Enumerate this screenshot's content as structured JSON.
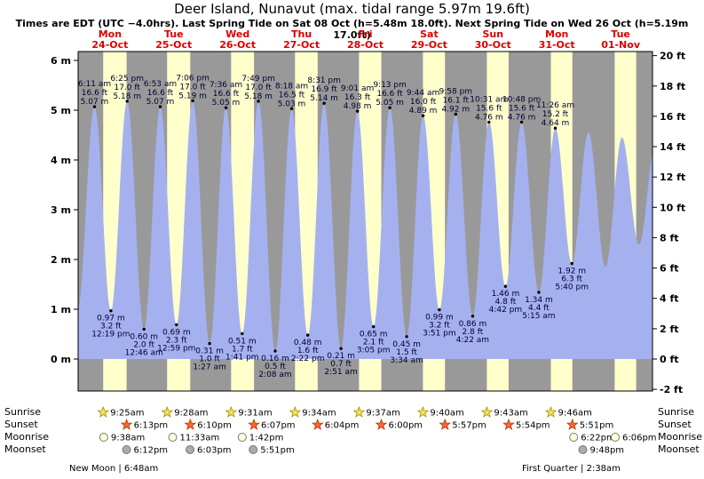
{
  "header": {
    "title": "Deer Island, Nunavut (max. tidal range 5.97m 19.6ft)",
    "subtitle": "Times are EDT (UTC −4.0hrs). Last Spring Tide on Sat 08 Oct (h=5.48m 18.0ft). Next Spring Tide on Wed 26 Oct (h=5.19m 17.0ft)"
  },
  "chart_data": {
    "type": "area",
    "title": "Deer Island, Nunavut tide curve",
    "days": [
      {
        "dow": "Mon",
        "date": "24-Oct"
      },
      {
        "dow": "Tue",
        "date": "25-Oct"
      },
      {
        "dow": "Wed",
        "date": "26-Oct"
      },
      {
        "dow": "Thu",
        "date": "27-Oct"
      },
      {
        "dow": "Fri",
        "date": "28-Oct"
      },
      {
        "dow": "Sat",
        "date": "29-Oct"
      },
      {
        "dow": "Sun",
        "date": "30-Oct"
      },
      {
        "dow": "Mon",
        "date": "31-Oct"
      },
      {
        "dow": "Tue",
        "date": "01-Nov"
      }
    ],
    "y_axis_left": {
      "unit": "m",
      "ticks": [
        6,
        5,
        4,
        3,
        2,
        1,
        0
      ]
    },
    "y_axis_right": {
      "unit": "ft",
      "ticks": [
        20,
        18,
        16,
        14,
        12,
        10,
        8,
        6,
        4,
        2,
        0,
        -2
      ]
    },
    "extremes": [
      {
        "kind": "high",
        "time": "6:11 am",
        "ft": "16.6 ft",
        "m": "5.07 m",
        "t": 6.18,
        "height_m": 5.07
      },
      {
        "kind": "low",
        "m": "0.97 m",
        "ft": "3.2 ft",
        "time": "12:19 pm",
        "t": 12.32,
        "height_m": 0.97
      },
      {
        "kind": "high",
        "time": "6:25 pm",
        "ft": "17.0 ft",
        "m": "5.18 m",
        "t": 18.42,
        "height_m": 5.18
      },
      {
        "kind": "low",
        "m": "0.60 m",
        "ft": "2.0 ft",
        "time": "12:46 am",
        "t": 24.77,
        "height_m": 0.6
      },
      {
        "kind": "high",
        "time": "6:53 am",
        "ft": "16.6 ft",
        "m": "5.07 m",
        "t": 30.88,
        "height_m": 5.07
      },
      {
        "kind": "low",
        "m": "0.69 m",
        "ft": "2.3 ft",
        "time": "12:59 pm",
        "t": 36.98,
        "height_m": 0.69
      },
      {
        "kind": "high",
        "time": "7:06 pm",
        "ft": "17.0 ft",
        "m": "5.19 m",
        "t": 43.1,
        "height_m": 5.19
      },
      {
        "kind": "low",
        "m": "0.31 m",
        "ft": "1.0 ft",
        "time": "1:27 am",
        "t": 49.45,
        "height_m": 0.31
      },
      {
        "kind": "high",
        "time": "7:36 am",
        "ft": "16.6 ft",
        "m": "5.05 m",
        "t": 55.6,
        "height_m": 5.05
      },
      {
        "kind": "low",
        "m": "0.51 m",
        "ft": "1.7 ft",
        "time": "1:41 pm",
        "t": 61.68,
        "height_m": 0.51
      },
      {
        "kind": "high",
        "time": "7:49 pm",
        "ft": "17.0 ft",
        "m": "5.18 m",
        "t": 67.82,
        "height_m": 5.18
      },
      {
        "kind": "low",
        "m": "0.16 m",
        "ft": "0.5 ft",
        "time": "2:08 am",
        "t": 74.13,
        "height_m": 0.16
      },
      {
        "kind": "high",
        "time": "8:18 am",
        "ft": "16.5 ft",
        "m": "5.03 m",
        "t": 80.3,
        "height_m": 5.03
      },
      {
        "kind": "low",
        "m": "0.48 m",
        "ft": "1.6 ft",
        "time": "2:22 pm",
        "t": 86.37,
        "height_m": 0.48
      },
      {
        "kind": "high",
        "time": "8:31 pm",
        "ft": "16.9 ft",
        "m": "5.14 m",
        "t": 92.52,
        "height_m": 5.14
      },
      {
        "kind": "low",
        "m": "0.21 m",
        "ft": "0.7 ft",
        "time": "2:51 am",
        "t": 98.85,
        "height_m": 0.21
      },
      {
        "kind": "high",
        "time": "9:01 am",
        "ft": "16.3 ft",
        "m": "4.98 m",
        "t": 105.02,
        "height_m": 4.98
      },
      {
        "kind": "low",
        "m": "0.65 m",
        "ft": "2.1 ft",
        "time": "3:05 pm",
        "t": 111.08,
        "height_m": 0.65
      },
      {
        "kind": "high",
        "time": "9:13 pm",
        "ft": "16.6 ft",
        "m": "5.05 m",
        "t": 117.22,
        "height_m": 5.05
      },
      {
        "kind": "low",
        "m": "0.45 m",
        "ft": "1.5 ft",
        "time": "3:34 am",
        "t": 123.57,
        "height_m": 0.45
      },
      {
        "kind": "high",
        "time": "9:44 am",
        "ft": "16.0 ft",
        "m": "4.89 m",
        "t": 129.73,
        "height_m": 4.89
      },
      {
        "kind": "low",
        "m": "0.99 m",
        "ft": "3.2 ft",
        "time": "3:51 pm",
        "t": 135.85,
        "height_m": 0.99
      },
      {
        "kind": "high",
        "time": "9:58 pm",
        "ft": "16.1 ft",
        "m": "4.92 m",
        "t": 141.97,
        "height_m": 4.92
      },
      {
        "kind": "low",
        "m": "0.86 m",
        "ft": "2.8 ft",
        "time": "4:22 am",
        "t": 148.37,
        "height_m": 0.86
      },
      {
        "kind": "high",
        "time": "10:31 am",
        "ft": "15.6 ft",
        "m": "4.76 m",
        "t": 154.52,
        "height_m": 4.76
      },
      {
        "kind": "low",
        "m": "1.46 m",
        "ft": "4.8 ft",
        "time": "4:42 pm",
        "t": 160.7,
        "height_m": 1.46
      },
      {
        "kind": "high",
        "time": "10:48 pm",
        "ft": "15.6 ft",
        "m": "4.76 m",
        "t": 166.8,
        "height_m": 4.76
      },
      {
        "kind": "low",
        "m": "1.34 m",
        "ft": "4.4 ft",
        "time": "5:15 am",
        "t": 173.25,
        "height_m": 1.34
      },
      {
        "kind": "high",
        "time": "11:26 am",
        "ft": "15.2 ft",
        "m": "4.64 m",
        "t": 179.43,
        "height_m": 4.64
      },
      {
        "kind": "low",
        "m": "1.92 m",
        "ft": "6.3 ft",
        "time": "5:40 pm",
        "t": 185.67,
        "height_m": 1.92
      }
    ],
    "curve_start": {
      "t": -0.4,
      "height_m": 0.9
    },
    "curve_end_estimates": [
      {
        "t": 191.9,
        "height_m": 4.55
      },
      {
        "t": 198.3,
        "height_m": 1.85
      },
      {
        "t": 204.5,
        "height_m": 4.45
      },
      {
        "t": 210.9,
        "height_m": 2.3
      },
      {
        "t": 217.2,
        "height_m": 4.35
      }
    ]
  },
  "sun_moon": {
    "row_labels": [
      "Sunrise",
      "Sunset",
      "Moonrise",
      "Moonset"
    ],
    "sunrise": [
      {
        "day": 0,
        "time": "9:25am"
      },
      {
        "day": 1,
        "time": "9:28am"
      },
      {
        "day": 2,
        "time": "9:31am"
      },
      {
        "day": 3,
        "time": "9:34am"
      },
      {
        "day": 4,
        "time": "9:37am"
      },
      {
        "day": 5,
        "time": "9:40am"
      },
      {
        "day": 6,
        "time": "9:43am"
      },
      {
        "day": 7,
        "time": "9:46am"
      }
    ],
    "sunset": [
      {
        "day": 0,
        "time": "6:13pm"
      },
      {
        "day": 1,
        "time": "6:10pm"
      },
      {
        "day": 2,
        "time": "6:07pm"
      },
      {
        "day": 3,
        "time": "6:04pm"
      },
      {
        "day": 4,
        "time": "6:00pm"
      },
      {
        "day": 5,
        "time": "5:57pm"
      },
      {
        "day": 6,
        "time": "5:54pm"
      },
      {
        "day": 7,
        "time": "5:51pm"
      }
    ],
    "moonrise": [
      {
        "day": 0,
        "time": "9:38am"
      },
      {
        "day": 1,
        "time": "11:33am"
      },
      {
        "day": 2,
        "time": "1:42pm"
      },
      {
        "day": 7,
        "time": "6:22pm"
      },
      {
        "day": 8,
        "time": "6:06pm"
      }
    ],
    "moonset": [
      {
        "day": 0,
        "time": "6:12pm"
      },
      {
        "day": 1,
        "time": "6:03pm"
      },
      {
        "day": 2,
        "time": "5:51pm"
      },
      {
        "day": 7,
        "time": "9:48pm"
      }
    ]
  },
  "footer": {
    "new_moon": "New Moon | 6:48am",
    "first_quarter": "First Quarter | 2:38am"
  },
  "colors": {
    "night_band": "#999999",
    "day_band": "#ffffcc",
    "tide_fill": "#a5b1ef",
    "date_red": "#dd0000",
    "annotation": "#000033",
    "sunrise_star": "#ffe14c",
    "sunrise_star_edge": "#9a8a20",
    "sunset_star": "#f96a2e",
    "sunset_star_edge": "#b53200",
    "moonrise_circle": "#ffffd8",
    "moonset_circle": "#ababab",
    "moon_edge": "#777777"
  }
}
